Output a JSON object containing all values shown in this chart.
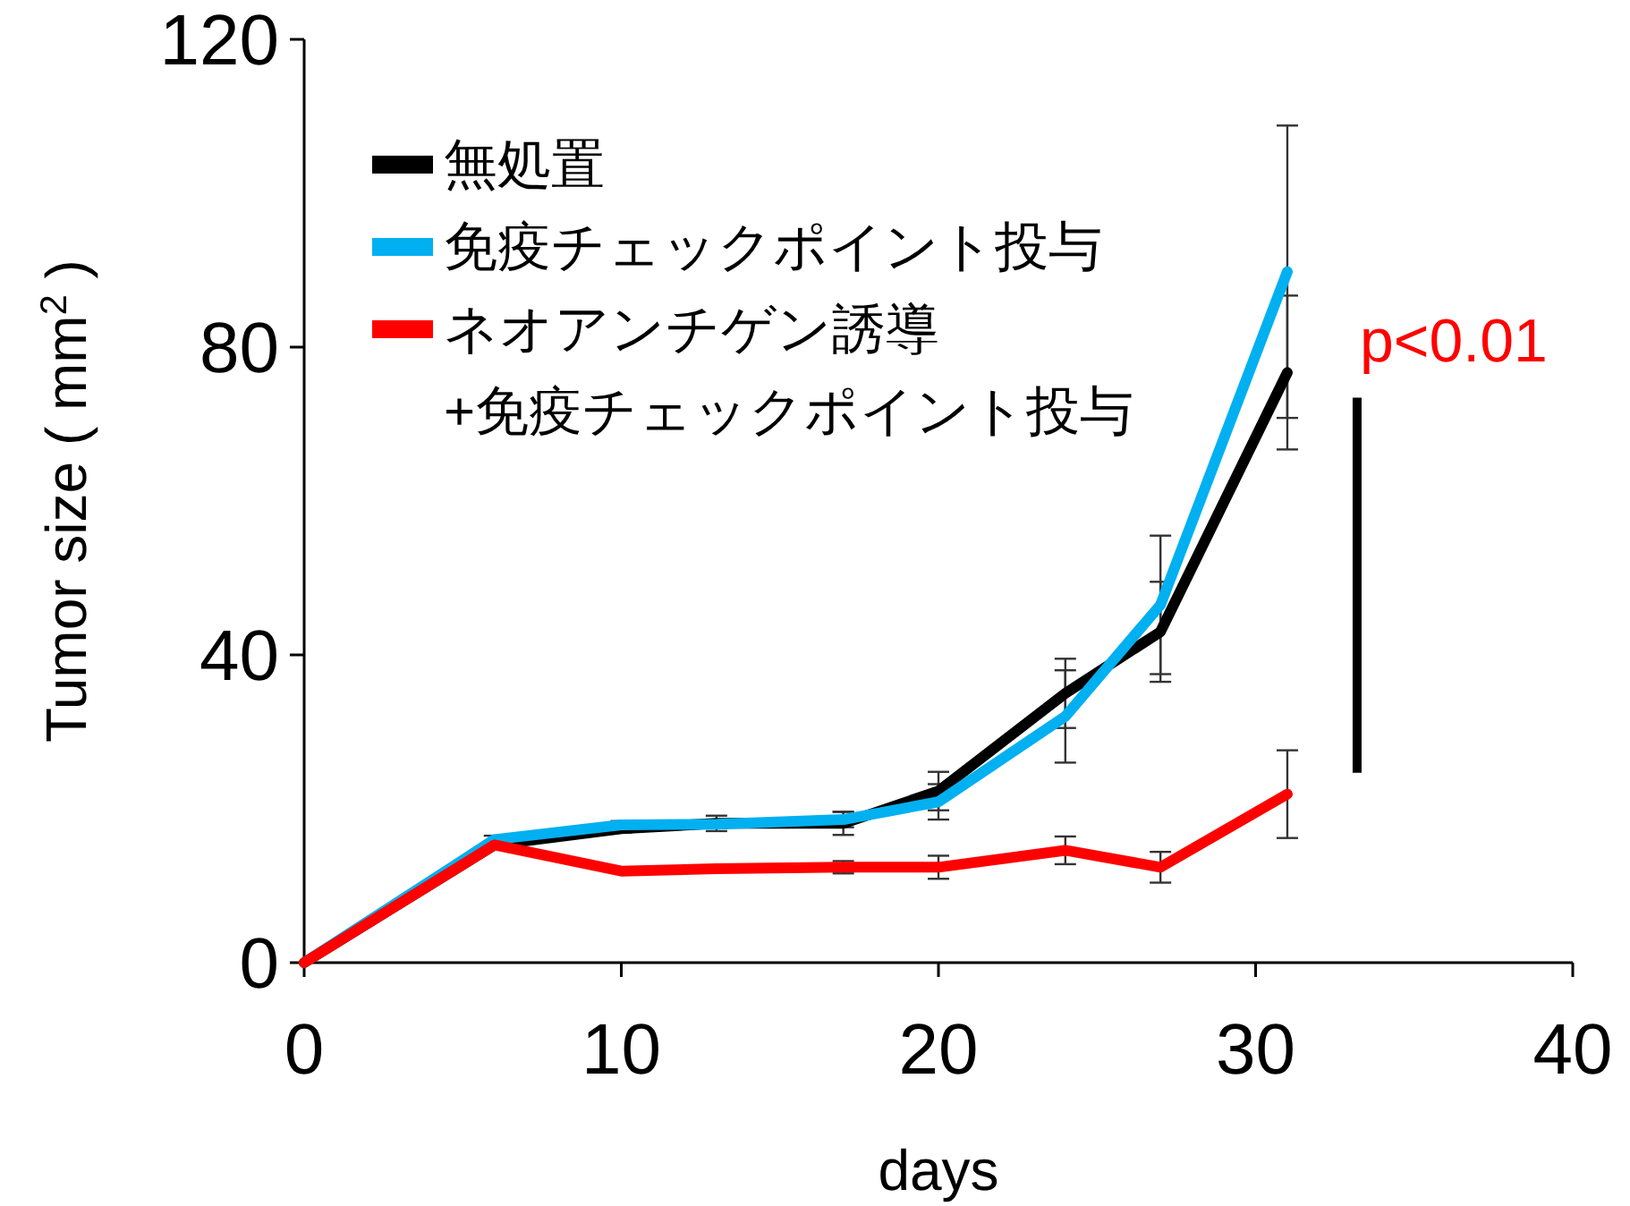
{
  "chart_data": {
    "type": "line",
    "xlabel": "days",
    "ylabel": "Tumor size ( mm$^{2}$ )",
    "x": [
      0,
      6,
      10,
      13,
      17,
      20,
      24,
      27,
      31
    ],
    "xlim": [
      0,
      40
    ],
    "xticks": [
      0,
      10,
      20,
      30,
      40
    ],
    "ylim": [
      0,
      120
    ],
    "yticks": [
      0,
      40,
      80,
      120
    ],
    "legend": "top left",
    "grid": false,
    "marker": "none",
    "annotations": [
      "p<0.01"
    ],
    "series": [
      {
        "name": "無処置",
        "color": "#000000",
        "values": [
          0,
          15.3,
          17.4,
          18.1,
          18.1,
          22.3,
          35,
          43,
          76.7
        ],
        "errors": [
          null,
          0.5,
          0.5,
          1,
          1.5,
          2.5,
          4.5,
          6.5,
          10
        ]
      },
      {
        "name": "免疫チェックポイント投与",
        "color": "#00b0f0",
        "values": [
          0,
          16,
          17.9,
          18,
          18.6,
          20.9,
          32,
          46.5,
          89.8
        ],
        "errors": [
          null,
          0.5,
          0.5,
          0.5,
          1,
          2.3,
          6,
          9,
          19
        ]
      },
      {
        "name": "ネオアンチゲン誘導+免疫チェックポイント投与",
        "color": "#ff0000",
        "values": [
          0,
          15.3,
          11.9,
          12.2,
          12.4,
          12.4,
          14.6,
          12.4,
          21.9
        ],
        "errors": [
          null,
          null,
          null,
          0.4,
          0.8,
          1.5,
          1.8,
          2,
          5.7
        ]
      }
    ]
  }
}
